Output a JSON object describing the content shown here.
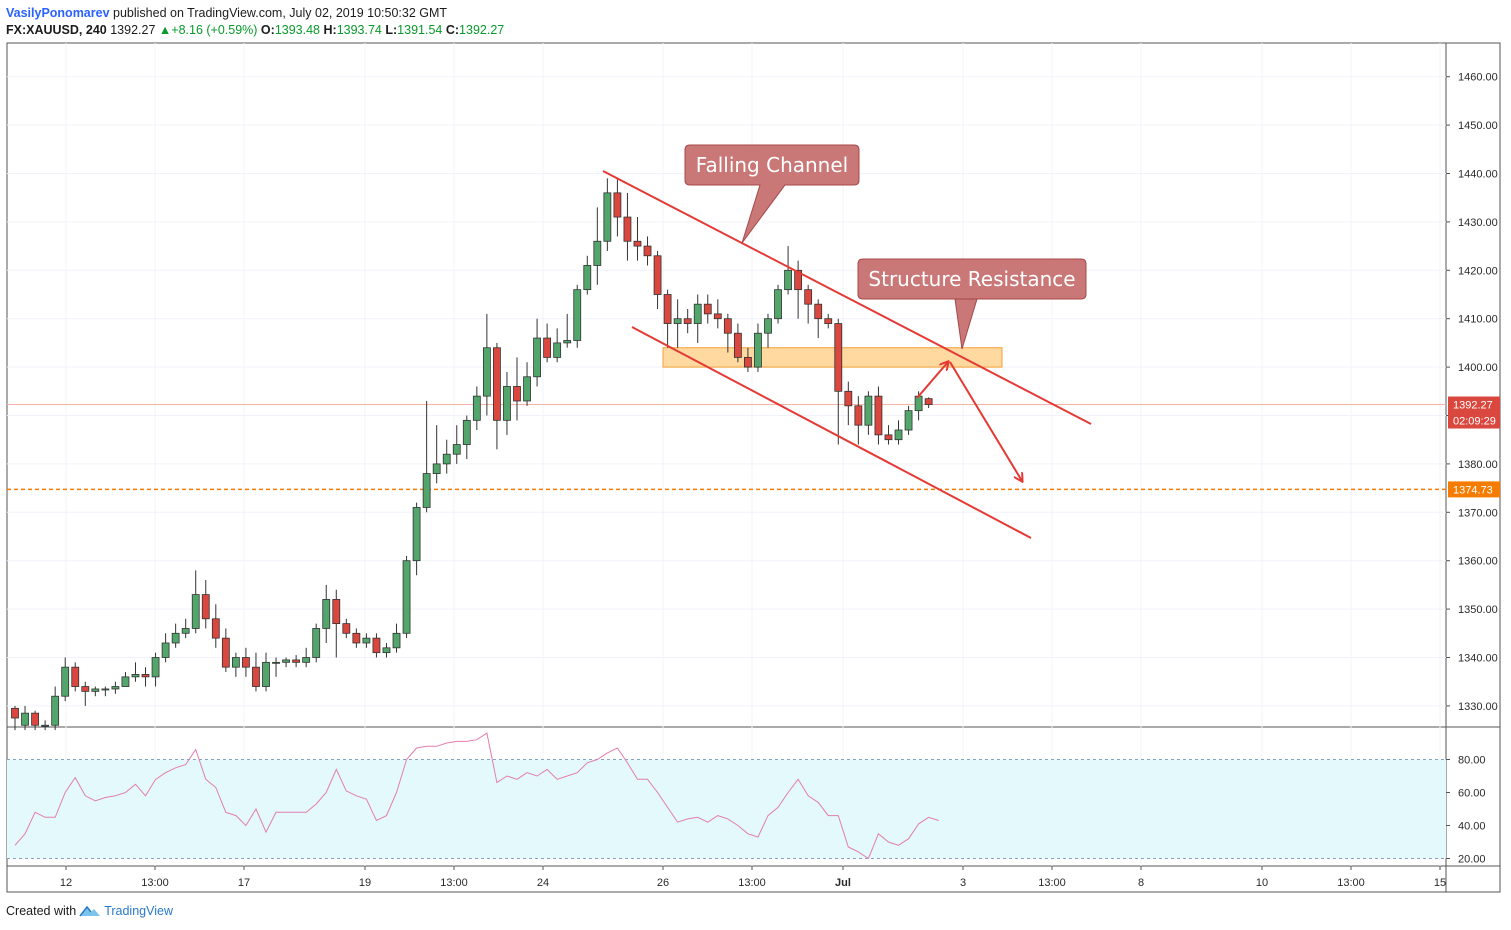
{
  "header": {
    "author": "VasilyPonomarev",
    "published": "published on TradingView.com, July 02, 2019 10:50:32 GMT",
    "symbol": "FX:XAUUSD, 240",
    "last": "1392.27",
    "change": "+8.16 (+0.59%)",
    "o_label": "O:",
    "o_value": "1393.48",
    "h_label": "H:",
    "h_value": "1393.74",
    "l_label": "L:",
    "l_value": "1391.54",
    "c_label": "C:",
    "c_value": "1392.27"
  },
  "footer": {
    "created": "Created with",
    "brand": "TradingView"
  },
  "colors": {
    "up": "#53a66b",
    "down": "#d9473e",
    "line": "#e53935",
    "zone": "#ffcc80",
    "rsi": "#e37db0",
    "rsi_band": "#e3f9fc",
    "level": "#f57c00"
  },
  "chart_data": {
    "type": "candlestick",
    "symbol": "FX:XAUUSD",
    "interval": "240",
    "price_axis": {
      "min": 1325,
      "max": 1465,
      "ticks": [
        "1460.00",
        "1450.00",
        "1440.00",
        "1430.00",
        "1420.00",
        "1410.00",
        "1400.00",
        "1390.00",
        "1380.00",
        "1370.00",
        "1360.00",
        "1350.00",
        "1340.00",
        "1330.00"
      ]
    },
    "time_axis": {
      "ticks": [
        "12",
        "13:00",
        "17",
        "19",
        "13:00",
        "24",
        "26",
        "13:00",
        "Jul",
        "3",
        "13:00",
        "8",
        "10",
        "13:00",
        "15"
      ]
    },
    "candles": [
      [
        1329.5,
        1327.5,
        1330,
        1325
      ],
      [
        1326,
        1328.5,
        1330,
        1325
      ],
      [
        1328.5,
        1326,
        1329,
        1325
      ],
      [
        1326,
        1326,
        1327,
        1325
      ],
      [
        1326,
        1332,
        1334,
        1325
      ],
      [
        1332,
        1338,
        1340,
        1331
      ],
      [
        1338,
        1334,
        1339,
        1333
      ],
      [
        1334,
        1333,
        1335,
        1330
      ],
      [
        1333,
        1333.5,
        1334,
        1332
      ],
      [
        1333.5,
        1333.5,
        1334,
        1332
      ],
      [
        1333.5,
        1334,
        1335,
        1332.5
      ],
      [
        1334,
        1336,
        1337,
        1334
      ],
      [
        1336,
        1336.5,
        1339,
        1335
      ],
      [
        1336.5,
        1336,
        1338,
        1334
      ],
      [
        1336,
        1340,
        1341,
        1334
      ],
      [
        1340,
        1343,
        1345,
        1339
      ],
      [
        1343,
        1345,
        1347,
        1342
      ],
      [
        1345,
        1346,
        1348,
        1344
      ],
      [
        1346,
        1353,
        1358,
        1345
      ],
      [
        1353,
        1348,
        1356,
        1346
      ],
      [
        1348,
        1344,
        1351,
        1342
      ],
      [
        1344,
        1338,
        1346,
        1337
      ],
      [
        1338,
        1340,
        1341,
        1336
      ],
      [
        1340,
        1338,
        1342,
        1336
      ],
      [
        1338,
        1334,
        1341,
        1333
      ],
      [
        1334,
        1339,
        1341,
        1333
      ],
      [
        1339,
        1339,
        1340,
        1336
      ],
      [
        1339,
        1339.5,
        1340,
        1338
      ],
      [
        1339.5,
        1339,
        1340.5,
        1338
      ],
      [
        1339,
        1340,
        1342,
        1338
      ],
      [
        1340,
        1346,
        1347,
        1339
      ],
      [
        1346,
        1352,
        1355,
        1343
      ],
      [
        1352,
        1347,
        1354,
        1340
      ],
      [
        1347,
        1345,
        1348,
        1344
      ],
      [
        1345,
        1343,
        1346,
        1342
      ],
      [
        1343,
        1344,
        1345,
        1342
      ],
      [
        1344,
        1341,
        1345,
        1340
      ],
      [
        1341,
        1342,
        1343,
        1340
      ],
      [
        1342,
        1345,
        1347,
        1341
      ],
      [
        1345,
        1360,
        1361,
        1344
      ],
      [
        1360,
        1371,
        1372,
        1357
      ],
      [
        1371,
        1378,
        1393,
        1370
      ],
      [
        1378,
        1380,
        1388,
        1376
      ],
      [
        1380,
        1382,
        1385,
        1378
      ],
      [
        1382,
        1384,
        1388,
        1380
      ],
      [
        1384,
        1389,
        1390,
        1381
      ],
      [
        1389,
        1394,
        1396,
        1387
      ],
      [
        1394,
        1404,
        1411,
        1390
      ],
      [
        1404,
        1389,
        1405,
        1383
      ],
      [
        1389,
        1396,
        1399,
        1386
      ],
      [
        1396,
        1393,
        1402,
        1389
      ],
      [
        1393,
        1398,
        1401,
        1392
      ],
      [
        1398,
        1406,
        1410,
        1396
      ],
      [
        1406,
        1402,
        1409,
        1401
      ],
      [
        1402,
        1405,
        1408,
        1401
      ],
      [
        1405,
        1405.5,
        1411,
        1404
      ],
      [
        1405.5,
        1416,
        1417,
        1404
      ],
      [
        1416,
        1421,
        1423,
        1415
      ],
      [
        1421,
        1426,
        1433,
        1417
      ],
      [
        1426,
        1436,
        1439,
        1424
      ],
      [
        1436,
        1431,
        1439,
        1427
      ],
      [
        1431,
        1426,
        1436,
        1422
      ],
      [
        1426,
        1425,
        1431,
        1422
      ],
      [
        1425,
        1423,
        1427,
        1421
      ],
      [
        1423,
        1415,
        1424,
        1412
      ],
      [
        1415,
        1409,
        1416,
        1404
      ],
      [
        1409,
        1410,
        1414,
        1404
      ],
      [
        1410,
        1409,
        1412,
        1407
      ],
      [
        1409,
        1413,
        1415,
        1405
      ],
      [
        1413,
        1411,
        1415,
        1409
      ],
      [
        1411,
        1410,
        1414,
        1408
      ],
      [
        1410,
        1407,
        1411,
        1403
      ],
      [
        1407,
        1402,
        1409,
        1401
      ],
      [
        1402,
        1400,
        1404,
        1399
      ],
      [
        1400,
        1407,
        1409,
        1399
      ],
      [
        1407,
        1410,
        1411,
        1404
      ],
      [
        1410,
        1416,
        1417,
        1409
      ],
      [
        1416,
        1420,
        1425,
        1415
      ],
      [
        1420,
        1416,
        1422,
        1410
      ],
      [
        1416,
        1413,
        1417,
        1409
      ],
      [
        1413,
        1410,
        1414,
        1406
      ],
      [
        1410,
        1409,
        1411,
        1408
      ],
      [
        1409,
        1395,
        1410,
        1384
      ],
      [
        1395,
        1392,
        1397,
        1388
      ],
      [
        1392,
        1388,
        1394,
        1384
      ],
      [
        1388,
        1394,
        1395,
        1386
      ],
      [
        1394,
        1386,
        1396,
        1384
      ],
      [
        1386,
        1385,
        1388,
        1384
      ],
      [
        1385,
        1387,
        1389,
        1384
      ],
      [
        1387,
        1391,
        1392,
        1386
      ],
      [
        1391,
        1394,
        1395,
        1389
      ],
      [
        1393.48,
        1392.27,
        1393.74,
        1391.54
      ]
    ],
    "rsi": [
      40,
      28,
      35,
      48,
      45,
      45,
      60,
      69,
      58,
      55,
      57,
      58,
      60,
      65,
      58,
      68,
      72,
      75,
      77,
      86,
      68,
      63,
      48,
      46,
      40,
      50,
      36,
      48,
      48,
      48,
      48,
      53,
      60,
      74,
      61,
      58,
      56,
      43,
      46,
      60,
      80,
      87,
      88,
      88,
      90,
      91,
      91,
      92,
      96,
      66,
      70,
      68,
      72,
      70,
      74,
      68,
      70,
      72,
      78,
      80,
      84,
      87,
      78,
      68,
      68,
      60,
      51,
      42,
      44,
      45,
      42,
      46,
      44,
      40,
      35,
      33,
      46,
      51,
      60,
      68,
      58,
      54,
      46,
      46,
      27,
      24,
      20,
      35,
      30,
      28,
      32,
      41,
      45,
      43
    ],
    "rsi_ticks": [
      "80.00",
      "60.00",
      "40.00",
      "20.00"
    ],
    "rsi_band": [
      20,
      80
    ],
    "current_price": "1392.27",
    "countdown": "02:09:29",
    "level_price": "1374.73",
    "zone": {
      "low": 1400,
      "high": 1404
    },
    "channel_upper": [
      [
        1440,
        0
      ],
      [
        1423,
        0
      ]
    ],
    "annotations": {
      "falling_channel": "Falling Channel",
      "structure_resistance": "Structure Resistance"
    }
  }
}
